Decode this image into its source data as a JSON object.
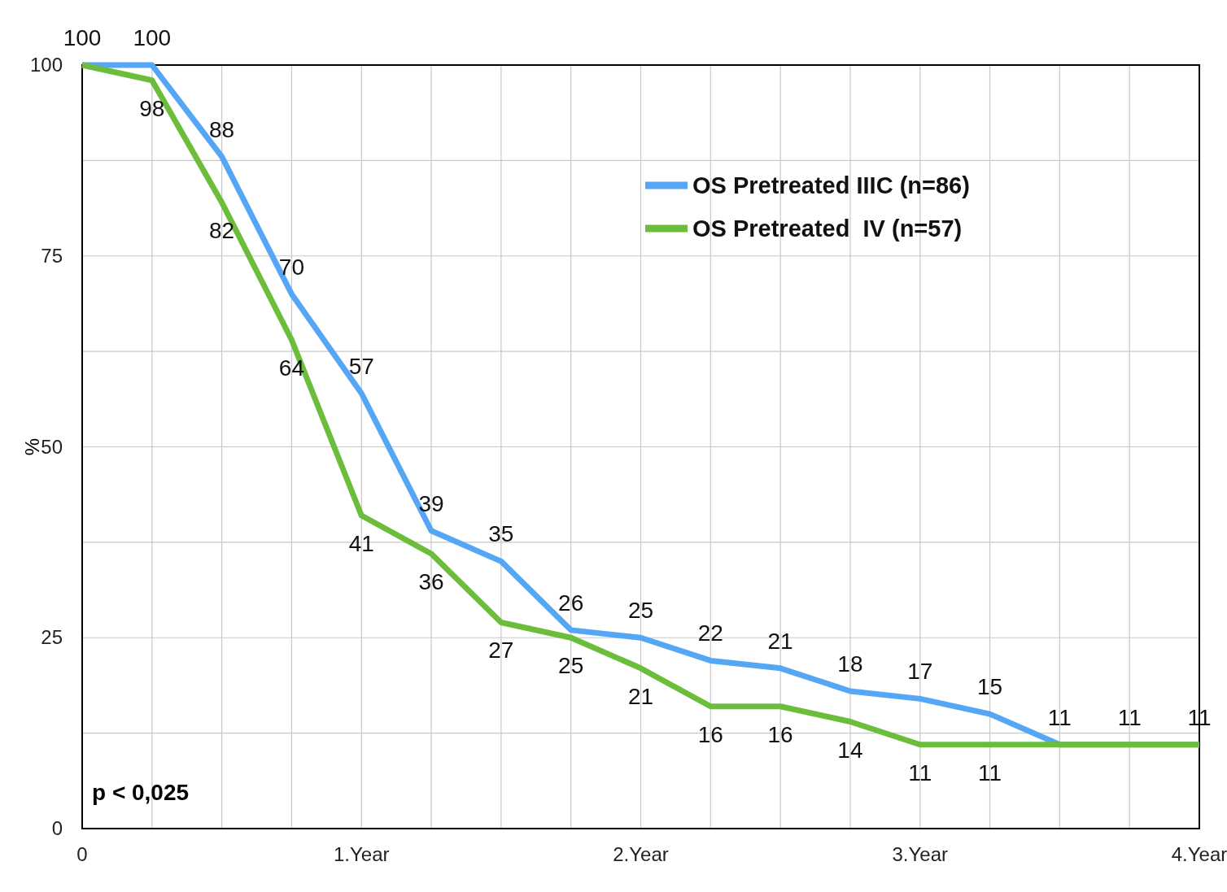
{
  "chart_data": {
    "type": "line",
    "ylabel": "%",
    "annotations": [
      "p < 0,025"
    ],
    "x": [
      0,
      0.25,
      0.5,
      0.75,
      1,
      1.25,
      1.5,
      1.75,
      2,
      2.25,
      2.5,
      2.75,
      3,
      3.25,
      3.5,
      3.75,
      4
    ],
    "xlim": [
      0,
      4
    ],
    "xticks": [
      0,
      {
        "value": 0.25,
        "label": null
      },
      {
        "value": 0.5,
        "label": null
      },
      {
        "value": 0.75,
        "label": null
      },
      {
        "value": 1,
        "label": "1.Year"
      },
      {
        "value": 1.25,
        "label": null
      },
      {
        "value": 1.5,
        "label": null
      },
      {
        "value": 1.75,
        "label": null
      },
      {
        "value": 2,
        "label": "2.Year"
      },
      {
        "value": 2.25,
        "label": null
      },
      {
        "value": 2.5,
        "label": null
      },
      {
        "value": 2.75,
        "label": null
      },
      {
        "value": 3,
        "label": "3.Year"
      },
      {
        "value": 3.25,
        "label": null
      },
      {
        "value": 3.5,
        "label": null
      },
      {
        "value": 3.75,
        "label": null
      },
      {
        "value": 4,
        "label": "4.Year"
      }
    ],
    "ylim": [
      0,
      100
    ],
    "yticks": [
      0,
      {
        "value": 12.5,
        "label": null
      },
      25,
      {
        "value": 37.5,
        "label": null
      },
      50,
      {
        "value": 62.5,
        "label": null
      },
      75,
      {
        "value": 87.5,
        "label": null
      },
      100
    ],
    "grid": true,
    "legend": "top right",
    "marker": "none",
    "line_style": "solid",
    "series": [
      {
        "name": "OS Pretreated IIIC (n=86)",
        "color": "#55a6f5",
        "values": [
          100,
          100,
          88,
          70,
          57,
          39,
          35,
          26,
          25,
          22,
          21,
          18,
          17,
          15,
          11,
          11,
          11
        ],
        "value_labels": [
          "100",
          "100",
          "88",
          "70",
          "57",
          "39",
          "35",
          "26",
          "25",
          "22",
          "21",
          "18",
          "17",
          "15",
          "11",
          "11",
          "11"
        ]
      },
      {
        "name": "OS Pretreated  IV (n=57)",
        "color": "#6cbd3c",
        "values": [
          100,
          98,
          82,
          64,
          41,
          36,
          27,
          25,
          21,
          16,
          16,
          14,
          11,
          11,
          11,
          11,
          11
        ],
        "value_labels": [
          null,
          "98",
          "82",
          "64",
          "41",
          "36",
          "27",
          "25",
          "21",
          "16",
          "16",
          "14",
          "11",
          "11",
          null,
          null,
          null
        ]
      }
    ]
  }
}
